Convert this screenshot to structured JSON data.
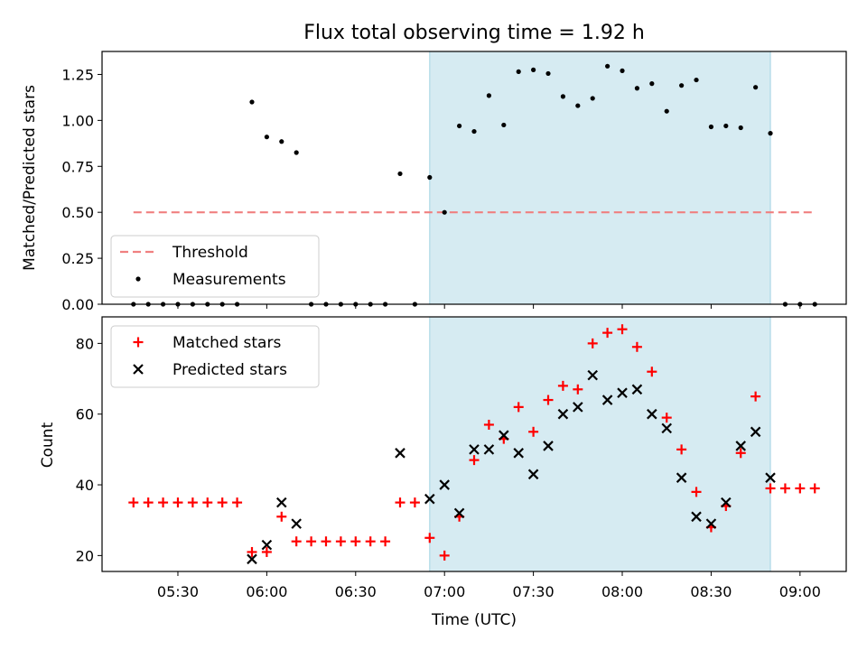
{
  "figure": {
    "title": "Flux total observing time = 1.92 h",
    "xlabel": "Time (UTC)",
    "x_ticks": [
      "05:30",
      "06:00",
      "06:30",
      "07:00",
      "07:30",
      "08:00",
      "08:30",
      "09:00"
    ],
    "shade_color": "#add8e6",
    "shaded_span": [
      "06:55",
      "08:50"
    ]
  },
  "chart_data": [
    {
      "type": "scatter",
      "ylabel": "Matched/Predicted stars",
      "ylim": [
        0,
        1.375
      ],
      "y_ticks": [
        "0.00",
        "0.25",
        "0.50",
        "0.75",
        "1.00",
        "1.25"
      ],
      "legend": "lower-left",
      "threshold": {
        "name": "Threshold",
        "value": 0.5,
        "x_range": [
          "05:15",
          "09:05"
        ],
        "color": "#f08080"
      },
      "series": [
        {
          "name": "Measurements",
          "color": "#000000",
          "marker": "dot",
          "points": [
            [
              "05:15",
              0
            ],
            [
              "05:20",
              0
            ],
            [
              "05:25",
              0
            ],
            [
              "05:30",
              0
            ],
            [
              "05:35",
              0
            ],
            [
              "05:40",
              0
            ],
            [
              "05:45",
              0
            ],
            [
              "05:50",
              0
            ],
            [
              "05:55",
              1.1
            ],
            [
              "06:00",
              0.91
            ],
            [
              "06:05",
              0.885
            ],
            [
              "06:10",
              0.825
            ],
            [
              "06:15",
              0
            ],
            [
              "06:20",
              0
            ],
            [
              "06:25",
              0
            ],
            [
              "06:30",
              0
            ],
            [
              "06:35",
              0
            ],
            [
              "06:40",
              0
            ],
            [
              "06:45",
              0.71
            ],
            [
              "06:50",
              0
            ],
            [
              "06:55",
              0.69
            ],
            [
              "07:00",
              0.5
            ],
            [
              "07:05",
              0.97
            ],
            [
              "07:10",
              0.94
            ],
            [
              "07:15",
              1.135
            ],
            [
              "07:20",
              0.975
            ],
            [
              "07:25",
              1.265
            ],
            [
              "07:30",
              1.275
            ],
            [
              "07:35",
              1.255
            ],
            [
              "07:40",
              1.13
            ],
            [
              "07:45",
              1.08
            ],
            [
              "07:50",
              1.12
            ],
            [
              "07:55",
              1.295
            ],
            [
              "08:00",
              1.27
            ],
            [
              "08:05",
              1.175
            ],
            [
              "08:10",
              1.2
            ],
            [
              "08:15",
              1.05
            ],
            [
              "08:20",
              1.19
            ],
            [
              "08:25",
              1.22
            ],
            [
              "08:30",
              0.965
            ],
            [
              "08:35",
              0.97
            ],
            [
              "08:40",
              0.96
            ],
            [
              "08:45",
              1.18
            ],
            [
              "08:50",
              0.93
            ],
            [
              "08:55",
              0
            ],
            [
              "09:00",
              0
            ],
            [
              "09:05",
              0
            ]
          ]
        }
      ]
    },
    {
      "type": "scatter",
      "ylabel": "Count",
      "ylim": [
        15.5,
        87.5
      ],
      "y_ticks": [
        "20",
        "40",
        "60",
        "80"
      ],
      "legend": "top-left",
      "series": [
        {
          "name": "Matched stars",
          "color": "#ff0000",
          "marker": "plus",
          "points": [
            [
              "05:15",
              35
            ],
            [
              "05:20",
              35
            ],
            [
              "05:25",
              35
            ],
            [
              "05:30",
              35
            ],
            [
              "05:35",
              35
            ],
            [
              "05:40",
              35
            ],
            [
              "05:45",
              35
            ],
            [
              "05:50",
              35
            ],
            [
              "05:55",
              21
            ],
            [
              "06:00",
              21
            ],
            [
              "06:05",
              31
            ],
            [
              "06:10",
              24
            ],
            [
              "06:15",
              24
            ],
            [
              "06:20",
              24
            ],
            [
              "06:25",
              24
            ],
            [
              "06:30",
              24
            ],
            [
              "06:35",
              24
            ],
            [
              "06:40",
              24
            ],
            [
              "06:45",
              35
            ],
            [
              "06:50",
              35
            ],
            [
              "06:55",
              25
            ],
            [
              "07:00",
              20
            ],
            [
              "07:05",
              31
            ],
            [
              "07:10",
              47
            ],
            [
              "07:15",
              57
            ],
            [
              "07:20",
              53
            ],
            [
              "07:25",
              62
            ],
            [
              "07:30",
              55
            ],
            [
              "07:35",
              64
            ],
            [
              "07:40",
              68
            ],
            [
              "07:45",
              67
            ],
            [
              "07:50",
              80
            ],
            [
              "07:55",
              83
            ],
            [
              "08:00",
              84
            ],
            [
              "08:05",
              79
            ],
            [
              "08:10",
              72
            ],
            [
              "08:15",
              59
            ],
            [
              "08:20",
              50
            ],
            [
              "08:25",
              38
            ],
            [
              "08:30",
              28
            ],
            [
              "08:35",
              34
            ],
            [
              "08:40",
              49
            ],
            [
              "08:45",
              65
            ],
            [
              "08:50",
              39
            ],
            [
              "08:55",
              39
            ],
            [
              "09:00",
              39
            ],
            [
              "09:05",
              39
            ]
          ]
        },
        {
          "name": "Predicted stars",
          "color": "#000000",
          "marker": "cross",
          "points": [
            [
              "05:55",
              19
            ],
            [
              "06:00",
              23
            ],
            [
              "06:05",
              35
            ],
            [
              "06:10",
              29
            ],
            [
              "06:45",
              49
            ],
            [
              "06:55",
              36
            ],
            [
              "07:00",
              40
            ],
            [
              "07:05",
              32
            ],
            [
              "07:10",
              50
            ],
            [
              "07:15",
              50
            ],
            [
              "07:20",
              54
            ],
            [
              "07:25",
              49
            ],
            [
              "07:30",
              43
            ],
            [
              "07:35",
              51
            ],
            [
              "07:40",
              60
            ],
            [
              "07:45",
              62
            ],
            [
              "07:50",
              71
            ],
            [
              "07:55",
              64
            ],
            [
              "08:00",
              66
            ],
            [
              "08:05",
              67
            ],
            [
              "08:10",
              60
            ],
            [
              "08:15",
              56
            ],
            [
              "08:20",
              42
            ],
            [
              "08:25",
              31
            ],
            [
              "08:30",
              29
            ],
            [
              "08:35",
              35
            ],
            [
              "08:40",
              51
            ],
            [
              "08:45",
              55
            ],
            [
              "08:50",
              42
            ]
          ]
        }
      ]
    }
  ]
}
